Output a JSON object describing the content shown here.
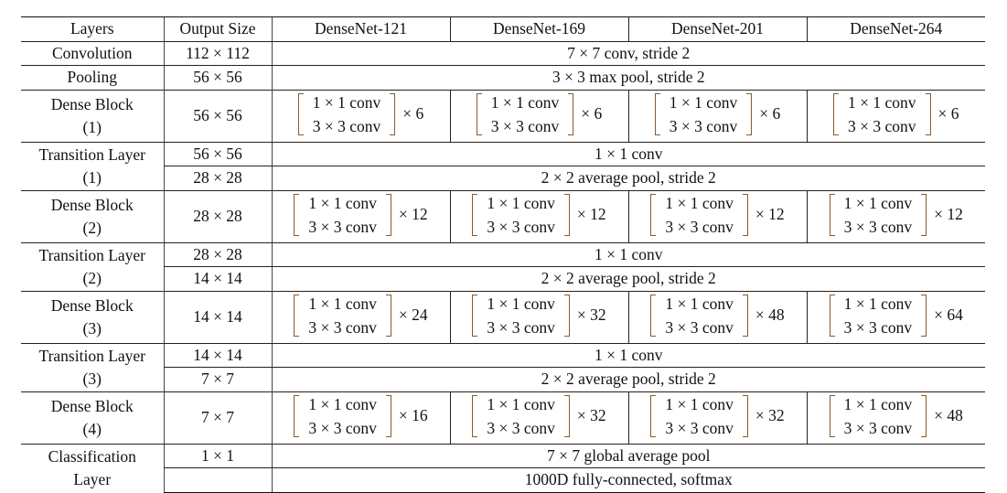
{
  "headers": [
    "Layers",
    "Output Size",
    "DenseNet-121",
    "DenseNet-169",
    "DenseNet-201",
    "DenseNet-264"
  ],
  "conv": {
    "layer": "Convolution",
    "size": "112 × 112",
    "desc": "7 × 7 conv, stride 2"
  },
  "pool": {
    "layer": "Pooling",
    "size": "56 × 56",
    "desc": "3 × 3 max pool, stride 2"
  },
  "block_line1": "1 × 1 conv",
  "block_line2": "3 × 3 conv",
  "dense": [
    {
      "layer1": "Dense Block",
      "layer2": "(1)",
      "size": "56 × 56",
      "reps": [
        "× 6",
        "× 6",
        "× 6",
        "× 6"
      ]
    },
    {
      "layer1": "Dense Block",
      "layer2": "(2)",
      "size": "28 × 28",
      "reps": [
        "× 12",
        "× 12",
        "× 12",
        "× 12"
      ]
    },
    {
      "layer1": "Dense Block",
      "layer2": "(3)",
      "size": "14 × 14",
      "reps": [
        "× 24",
        "× 32",
        "× 48",
        "× 64"
      ]
    },
    {
      "layer1": "Dense Block",
      "layer2": "(4)",
      "size": "7 × 7",
      "reps": [
        "× 16",
        "× 32",
        "× 32",
        "× 48"
      ]
    }
  ],
  "trans": [
    {
      "layer1": "Transition Layer",
      "layer2": "(1)",
      "size1": "56 × 56",
      "size2": "28 × 28",
      "desc1": "1 × 1 conv",
      "desc2": "2 × 2 average pool, stride 2"
    },
    {
      "layer1": "Transition Layer",
      "layer2": "(2)",
      "size1": "28 × 28",
      "size2": "14 × 14",
      "desc1": "1 × 1 conv",
      "desc2": "2 × 2 average pool, stride 2"
    },
    {
      "layer1": "Transition Layer",
      "layer2": "(3)",
      "size1": "14 × 14",
      "size2": "7 × 7",
      "desc1": "1 × 1 conv",
      "desc2": "2 × 2 average pool, stride 2"
    }
  ],
  "cls": {
    "layer1": "Classification",
    "layer2": "Layer",
    "size": "1 × 1",
    "desc1": "7 × 7 global average pool",
    "desc2": "1000D fully-connected, softmax"
  },
  "colors": {
    "bracket": "#8a5a2e"
  }
}
